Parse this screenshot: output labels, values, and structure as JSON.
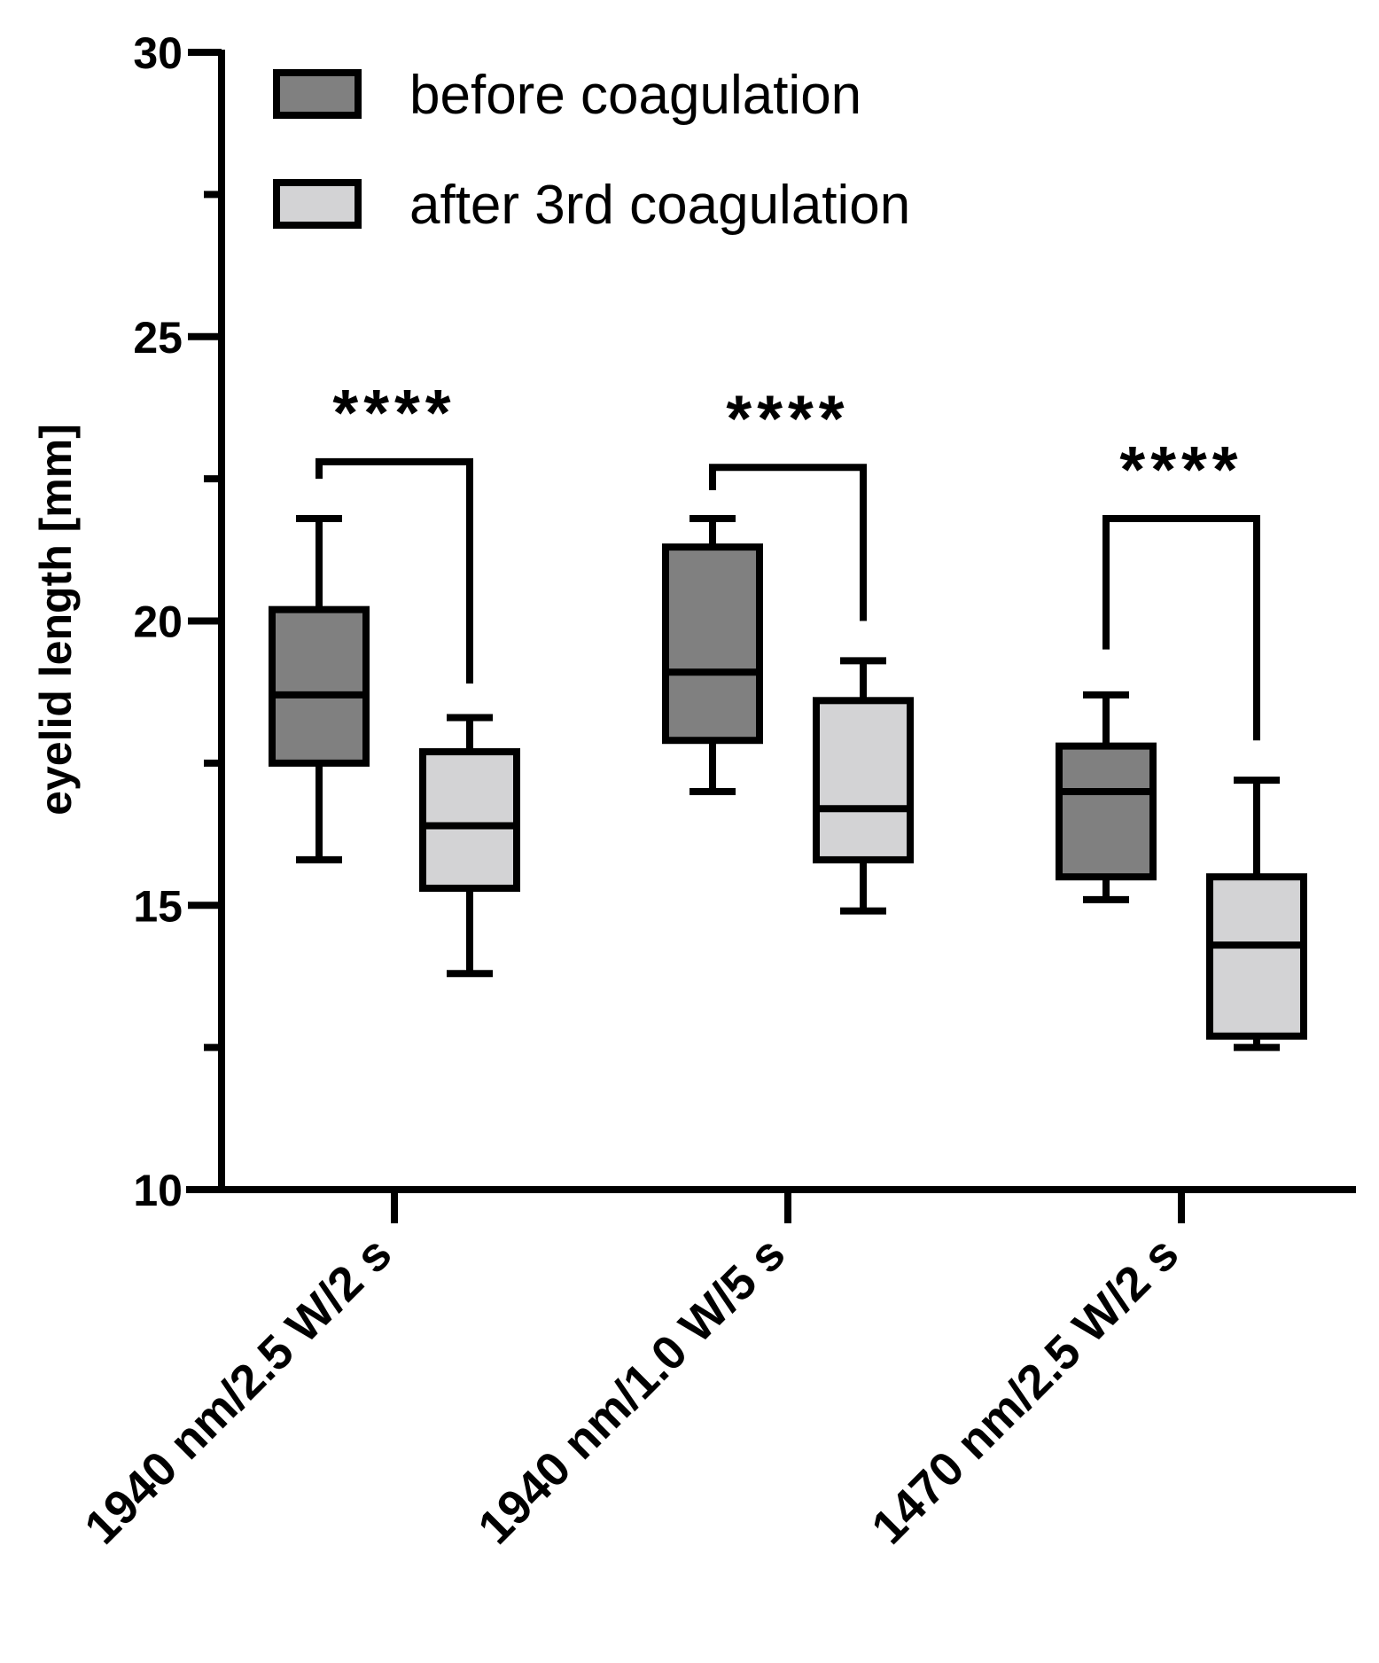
{
  "chart_data": {
    "type": "box",
    "title": "",
    "xlabel": "",
    "ylabel": "eyelid length [mm]",
    "ylim": [
      10,
      30
    ],
    "yticks": [
      10,
      15,
      20,
      25,
      30
    ],
    "minor_ticks": [
      12.5,
      17.5,
      22.5,
      27.5
    ],
    "categories": [
      "1940 nm/2.5 W/2 s",
      "1940 nm/1.0 W/5 s",
      "1470 nm/2.5 W/2 s"
    ],
    "legend_position": "top-left",
    "series": [
      {
        "name": "before coagulation",
        "color": "#808080",
        "boxes": [
          {
            "min": 15.8,
            "q1": 17.5,
            "median": 18.7,
            "q3": 20.2,
            "max": 21.8
          },
          {
            "min": 17.0,
            "q1": 17.9,
            "median": 19.1,
            "q3": 21.3,
            "max": 21.8
          },
          {
            "min": 15.1,
            "q1": 15.5,
            "median": 17.0,
            "q3": 17.8,
            "max": 18.7
          }
        ]
      },
      {
        "name": "after 3rd coagulation",
        "color": "#d3d3d5",
        "boxes": [
          {
            "min": 13.8,
            "q1": 15.3,
            "median": 16.4,
            "q3": 17.7,
            "max": 18.3
          },
          {
            "min": 14.9,
            "q1": 15.8,
            "median": 16.7,
            "q3": 18.6,
            "max": 19.3
          },
          {
            "min": 12.5,
            "q1": 12.7,
            "median": 14.3,
            "q3": 15.5,
            "max": 17.2
          }
        ]
      }
    ],
    "significance": [
      {
        "category_index": 0,
        "label": "****",
        "bracket_y": 22.8,
        "left_y": 22.5,
        "right_y": 18.9
      },
      {
        "category_index": 1,
        "label": "****",
        "bracket_y": 22.7,
        "left_y": 22.3,
        "right_y": 20.0
      },
      {
        "category_index": 2,
        "label": "****",
        "bracket_y": 21.8,
        "left_y": 19.5,
        "right_y": 17.9
      }
    ]
  }
}
